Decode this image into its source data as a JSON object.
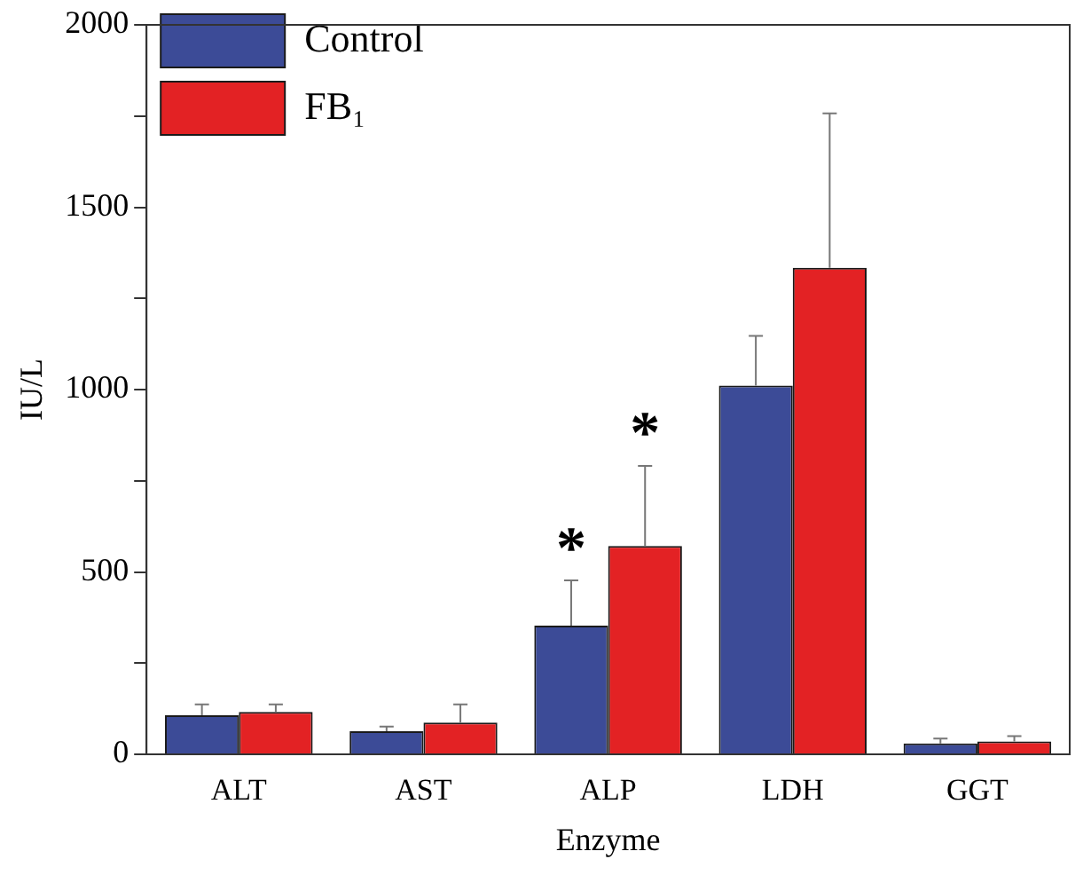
{
  "chart_data": {
    "type": "bar",
    "xlabel": "Enzyme",
    "ylabel": "IU/L",
    "categories": [
      "ALT",
      "AST",
      "ALP",
      "LDH",
      "GGT"
    ],
    "series": [
      {
        "name": "Control",
        "color": "#3c4b97",
        "values": [
          107,
          63,
          353,
          1011,
          30
        ],
        "errors": [
          [
            107,
            137
          ],
          [
            63,
            76
          ],
          [
            353,
            477
          ],
          [
            1011,
            1147
          ],
          [
            30,
            43
          ]
        ]
      },
      {
        "name": "FB₁",
        "color": "#e32224",
        "values": [
          116,
          87,
          571,
          1334,
          35
        ],
        "errors": [
          [
            116,
            137
          ],
          [
            87,
            137
          ],
          [
            571,
            791
          ],
          [
            1334,
            1757
          ],
          [
            35,
            50
          ]
        ]
      }
    ],
    "ylim": [
      0,
      2000
    ],
    "yticks": [
      0,
      {
        "value": 250,
        "label": null
      },
      500,
      {
        "value": 750,
        "label": null
      },
      1000,
      {
        "value": 1250,
        "label": null
      },
      1500,
      {
        "value": 1750,
        "label": null
      },
      2000
    ],
    "annotations": [
      {
        "text": "*",
        "x": "ALP",
        "y": 477
      },
      "*"
    ],
    "legend": "top left",
    "grid": false
  }
}
